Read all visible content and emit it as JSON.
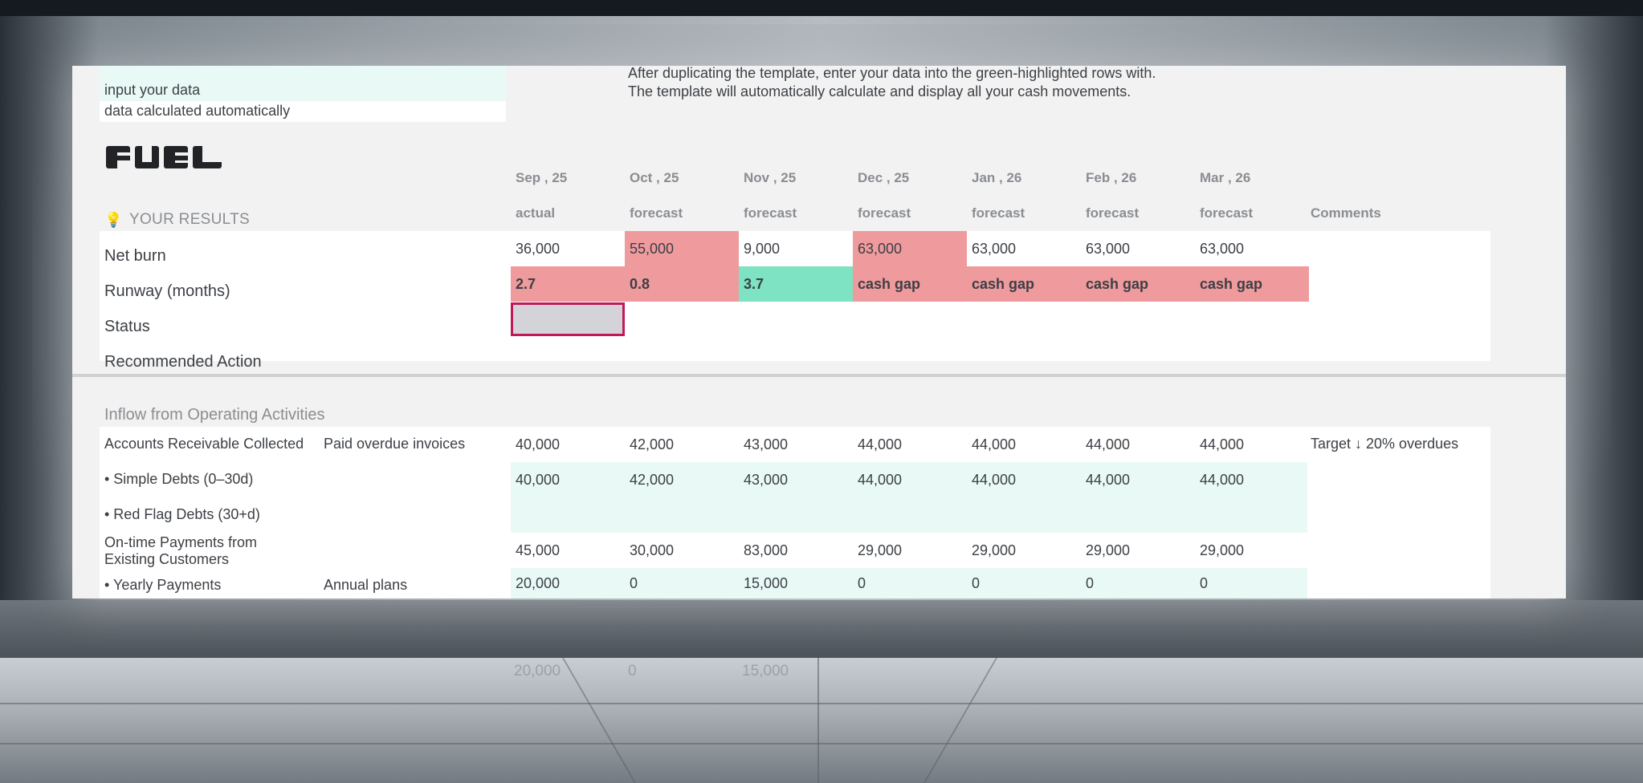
{
  "legend": {
    "input_label": "input your data",
    "calculated_label": "data calculated automatically"
  },
  "instructions": [
    "After duplicating the template, enter your data into the green-highlighted rows with.",
    "The template will automatically calculate and display all your cash movements."
  ],
  "brand": {
    "logo_text": "FUEL"
  },
  "results": {
    "heading": "YOUR RESULTS",
    "heading_icon": "lightbulb-icon",
    "months": [
      "Sep , 25",
      "Oct , 25",
      "Nov , 25",
      "Dec , 25",
      "Jan , 26",
      "Feb , 26",
      "Mar , 26"
    ],
    "types": [
      "actual",
      "forecast",
      "forecast",
      "forecast",
      "forecast",
      "forecast",
      "forecast"
    ],
    "comments_label": "Comments",
    "net_burn": {
      "label": "Net burn",
      "values": [
        "36,000",
        "55,000",
        "9,000",
        "63,000",
        "63,000",
        "63,000",
        "63,000"
      ]
    },
    "runway": {
      "label": "Runway (months)",
      "values": [
        "2.7",
        "0.8",
        "3.7",
        "cash gap",
        "cash gap",
        "cash gap",
        "cash gap"
      ]
    },
    "status": {
      "label": "Status"
    },
    "recommended_action": {
      "label": "Recommended Action"
    }
  },
  "inflow": {
    "heading": "Inflow from Operating Activities",
    "rows": [
      {
        "label": "Accounts Receivable Collected",
        "note": "Paid overdue invoices",
        "values": [
          "40,000",
          "42,000",
          "43,000",
          "44,000",
          "44,000",
          "44,000",
          "44,000"
        ],
        "comment": "Target ↓ 20% overdues"
      },
      {
        "label": "• Simple Debts (0–30d)",
        "note": "",
        "values": [
          "40,000",
          "42,000",
          "43,000",
          "44,000",
          "44,000",
          "44,000",
          "44,000"
        ],
        "comment": ""
      },
      {
        "label": "• Red Flag Debts (30+d)",
        "note": "",
        "values": [
          "",
          "",
          "",
          "",
          "",
          "",
          ""
        ],
        "comment": ""
      },
      {
        "label_line1": "On-time Payments from",
        "label_line2": "Existing Customers",
        "note": "",
        "values": [
          "45,000",
          "30,000",
          "83,000",
          "29,000",
          "29,000",
          "29,000",
          "29,000"
        ],
        "comment": ""
      },
      {
        "label": "• Yearly Payments",
        "note": "Annual plans",
        "values": [
          "20,000",
          "0",
          "15,000",
          "0",
          "0",
          "0",
          "0"
        ],
        "comment": ""
      }
    ]
  },
  "colors": {
    "input_green": "#e9faf6",
    "alert_red": "#ef9a9d",
    "ok_green": "#7de3c2",
    "status_border": "#c2185b"
  }
}
